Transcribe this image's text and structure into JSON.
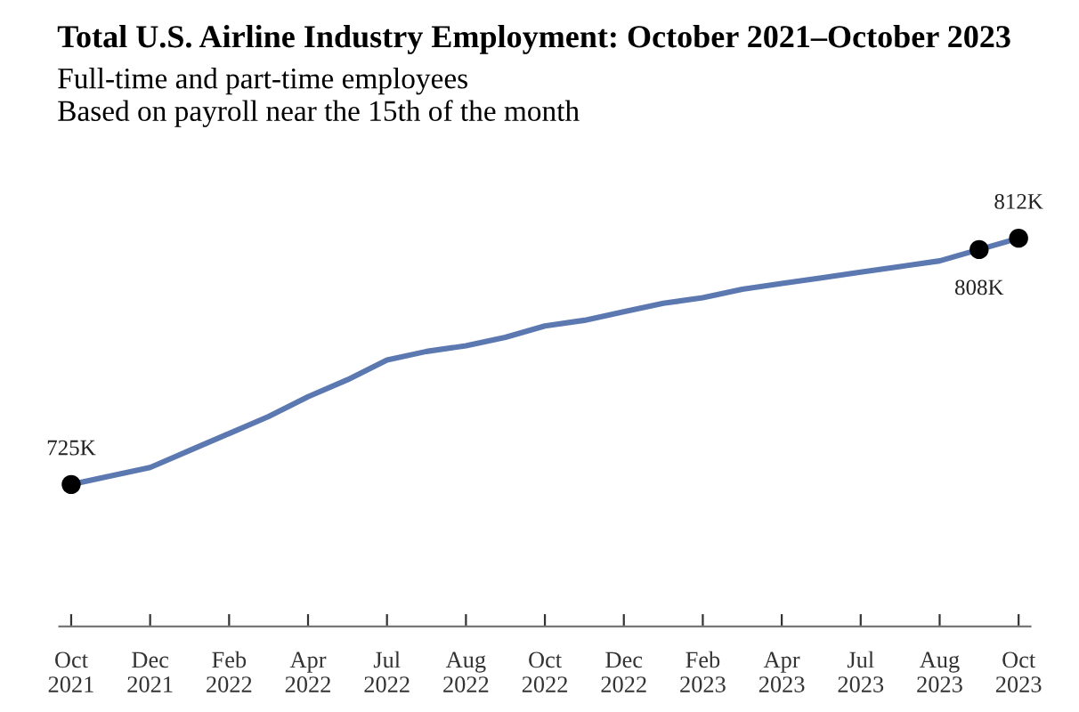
{
  "chart_data": {
    "type": "line",
    "title": "Total U.S. Airline Industry Employment: October 2021–October 2023",
    "subtitle": "Full-time and part-time employees\nBased on payroll near the 15th of the month",
    "categories": [
      "Oct\n2021",
      null,
      "Dec\n2021",
      null,
      "Feb\n2022",
      null,
      "Apr\n2022",
      null,
      "Jul\n2022",
      null,
      "Aug\n2022",
      null,
      "Oct\n2022",
      null,
      "Dec\n2022",
      null,
      "Feb\n2023",
      null,
      "Apr\n2023",
      null,
      "Jul\n2023",
      null,
      "Aug\n2023",
      null,
      "Oct\n2023"
    ],
    "series": [
      {
        "color": "#5b79b0",
        "values": [
          725,
          728,
          731,
          737,
          743,
          749,
          756,
          762,
          769,
          772,
          774,
          777,
          781,
          783,
          786,
          789,
          791,
          794,
          796,
          798,
          800,
          802,
          804,
          808,
          812
        ],
        "value_labels": [
          "725K",
          null,
          null,
          null,
          null,
          null,
          null,
          null,
          null,
          null,
          null,
          null,
          null,
          null,
          null,
          null,
          null,
          null,
          null,
          null,
          null,
          null,
          null,
          "808K",
          "812K"
        ]
      }
    ],
    "tick_labels": "x",
    "line_style": "solid",
    "grid": false,
    "legend": false
  }
}
